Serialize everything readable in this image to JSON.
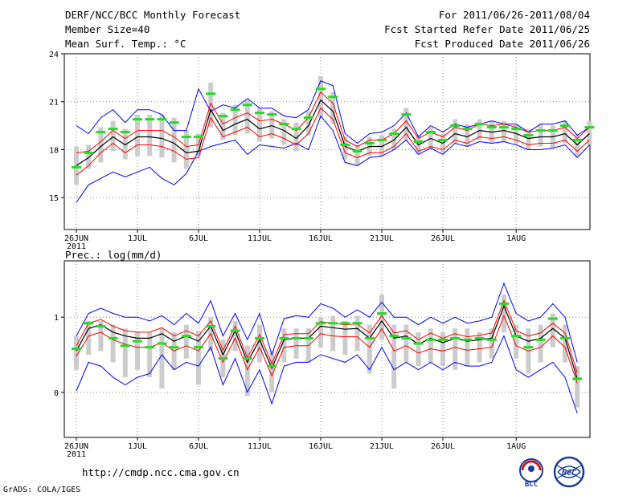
{
  "header": {
    "title": "DERF/NCC/BCC Monthly Forecast",
    "member_size": "Member Size=40",
    "variable": "Mean Surf. Temp.: °C",
    "period": "For 2011/06/26-2011/08/04",
    "started": "Fcst Started Refer Date 2011/06/25",
    "produced": "Fcst Produced Date 2011/06/26"
  },
  "footer": {
    "url": "http://cmdp.ncc.cma.gov.cn",
    "grads": "GrADS: COLA/IGES",
    "bcc_logo_text": "BCC",
    "ncc_logo_text": "NCC"
  },
  "colors": {
    "bar": "#cccccc",
    "ensemble_mean": "#000000",
    "inner_bounds": "#ff0000",
    "outer_bounds": "#0000ff",
    "marker": "#22dd22",
    "grid": "#888888"
  },
  "chart_data": [
    {
      "type": "line",
      "name": "temperature",
      "ylabel": "Mean Surf. Temp.: °C",
      "ylim": [
        13.0,
        24.0
      ],
      "yticks": [
        15,
        18,
        21,
        24
      ],
      "xtick_labels": [
        "26JUN",
        "1JUL",
        "6JUL",
        "11JUL",
        "16JUL",
        "21JUL",
        "26JUL",
        "1AUG"
      ],
      "xtick_days": [
        0,
        5,
        10,
        15,
        20,
        25,
        30,
        36
      ],
      "year_label": "2011",
      "days": 40,
      "series": [
        {
          "name": "mean",
          "values": [
            17.0,
            17.5,
            18.2,
            18.8,
            18.3,
            18.8,
            18.8,
            18.7,
            18.4,
            17.8,
            17.9,
            20.5,
            19.2,
            19.6,
            19.9,
            19.3,
            19.5,
            19.2,
            18.7,
            19.5,
            21.1,
            20.4,
            18.2,
            17.9,
            18.2,
            18.2,
            18.6,
            19.4,
            18.3,
            18.7,
            18.4,
            19.0,
            18.8,
            19.2,
            19.1,
            19.2,
            19.0,
            18.7,
            18.8,
            18.8,
            19.0,
            18.3,
            19.0
          ]
        },
        {
          "name": "upper_red",
          "values": [
            17.8,
            17.9,
            18.5,
            19.2,
            18.7,
            19.2,
            19.2,
            19.2,
            18.8,
            18.2,
            18.3,
            20.9,
            19.6,
            20.0,
            20.3,
            19.8,
            19.9,
            19.6,
            19.2,
            20.0,
            21.6,
            20.9,
            18.6,
            18.2,
            18.6,
            18.6,
            19.0,
            19.8,
            18.7,
            19.1,
            18.8,
            19.4,
            19.2,
            19.6,
            19.5,
            19.6,
            19.4,
            19.1,
            19.2,
            19.2,
            19.4,
            18.7,
            19.4
          ]
        },
        {
          "name": "lower_red",
          "values": [
            16.4,
            17.0,
            17.8,
            18.4,
            17.8,
            18.3,
            18.3,
            18.2,
            17.9,
            17.4,
            17.5,
            20.0,
            18.8,
            19.1,
            19.4,
            18.8,
            19.0,
            18.7,
            18.3,
            19.0,
            20.6,
            19.9,
            17.8,
            17.5,
            17.8,
            17.8,
            18.2,
            19.0,
            17.9,
            18.2,
            18.0,
            18.6,
            18.4,
            18.8,
            18.7,
            18.8,
            18.6,
            18.3,
            18.4,
            18.4,
            18.6,
            17.9,
            18.6
          ]
        },
        {
          "name": "upper_blue",
          "values": [
            19.5,
            19.0,
            20.0,
            20.5,
            19.7,
            20.5,
            20.5,
            20.2,
            19.2,
            19.2,
            21.8,
            20.4,
            20.8,
            20.6,
            21.2,
            20.6,
            20.6,
            20.1,
            20.0,
            20.5,
            22.3,
            22.0,
            19.0,
            18.4,
            19.0,
            19.1,
            19.5,
            20.3,
            18.8,
            19.5,
            19.1,
            19.6,
            19.4,
            19.6,
            19.8,
            19.6,
            19.6,
            19.1,
            19.6,
            19.6,
            19.8,
            18.9,
            19.4
          ]
        },
        {
          "name": "lower_blue",
          "values": [
            14.7,
            15.8,
            16.2,
            16.6,
            16.3,
            16.6,
            16.9,
            16.2,
            15.8,
            16.5,
            17.9,
            18.2,
            18.4,
            18.6,
            17.7,
            18.3,
            18.2,
            18.1,
            18.4,
            18.0,
            20.1,
            19.2,
            17.2,
            17.0,
            17.5,
            17.6,
            18.0,
            18.6,
            17.7,
            18.1,
            17.7,
            18.4,
            18.2,
            18.5,
            18.4,
            18.5,
            18.3,
            18.0,
            18.0,
            18.1,
            18.3,
            17.5,
            18.3
          ]
        },
        {
          "name": "green_marker",
          "values": [
            16.9,
            17.8,
            19.1,
            19.3,
            19.1,
            19.9,
            19.9,
            19.9,
            19.7,
            18.8,
            18.8,
            21.5,
            20.1,
            20.5,
            20.8,
            20.3,
            20.2,
            19.6,
            19.3,
            20.0,
            21.8,
            21.3,
            18.3,
            17.9,
            18.4,
            18.6,
            19.0,
            20.2,
            18.5,
            19.1,
            18.6,
            19.5,
            19.3,
            19.6,
            19.4,
            19.4,
            19.3,
            18.9,
            19.2,
            19.2,
            19.5,
            18.6,
            19.4
          ]
        },
        {
          "name": "bar_top",
          "values": [
            18.2,
            18.3,
            19.4,
            19.8,
            19.3,
            20.2,
            20.2,
            20.2,
            20.0,
            19.2,
            19.0,
            22.2,
            20.3,
            20.8,
            21.1,
            20.6,
            20.4,
            19.9,
            19.7,
            20.4,
            22.6,
            21.6,
            18.8,
            18.3,
            18.8,
            18.9,
            19.3,
            20.6,
            18.9,
            19.4,
            19.0,
            19.9,
            19.6,
            19.9,
            19.8,
            19.8,
            19.6,
            19.3,
            19.6,
            19.5,
            19.8,
            19.0,
            19.8
          ]
        },
        {
          "name": "bar_bottom",
          "values": [
            15.8,
            16.8,
            17.2,
            17.9,
            17.4,
            17.6,
            17.6,
            17.5,
            17.2,
            16.8,
            17.6,
            19.4,
            18.6,
            18.9,
            19.0,
            18.5,
            18.7,
            18.3,
            17.9,
            18.9,
            20.0,
            19.6,
            17.4,
            17.0,
            17.6,
            17.6,
            18.0,
            18.6,
            17.7,
            18.1,
            17.8,
            18.4,
            18.2,
            18.6,
            18.4,
            18.5,
            18.4,
            18.0,
            18.2,
            18.1,
            18.4,
            17.6,
            18.3
          ]
        }
      ]
    },
    {
      "type": "line",
      "name": "precipitation",
      "ylabel": "Prec.: log(mm/d)",
      "ylim": [
        -0.6,
        1.75
      ],
      "yticks": [
        0,
        1
      ],
      "xtick_labels": [
        "26JUN",
        "1JUL",
        "6JUL",
        "11JUL",
        "16JUL",
        "21JUL",
        "26JUL",
        "1AUG"
      ],
      "xtick_days": [
        0,
        5,
        10,
        15,
        20,
        25,
        30,
        36
      ],
      "year_label": "2011",
      "days": 40,
      "series": [
        {
          "name": "mean",
          "values": [
            0.55,
            0.85,
            0.9,
            0.8,
            0.75,
            0.72,
            0.72,
            0.78,
            0.68,
            0.75,
            0.68,
            0.88,
            0.5,
            0.82,
            0.4,
            0.7,
            0.32,
            0.7,
            0.72,
            0.72,
            0.88,
            0.86,
            0.84,
            0.85,
            0.72,
            0.95,
            0.72,
            0.75,
            0.64,
            0.72,
            0.66,
            0.72,
            0.68,
            0.7,
            0.72,
            1.15,
            0.75,
            0.68,
            0.72,
            0.85,
            0.72,
            0.18
          ]
        },
        {
          "name": "upper_red",
          "values": [
            0.62,
            0.92,
            0.97,
            0.88,
            0.82,
            0.8,
            0.8,
            0.86,
            0.75,
            0.82,
            0.75,
            0.95,
            0.56,
            0.88,
            0.46,
            0.77,
            0.38,
            0.77,
            0.78,
            0.78,
            0.94,
            0.92,
            0.9,
            0.91,
            0.79,
            1.02,
            0.79,
            0.82,
            0.7,
            0.79,
            0.72,
            0.78,
            0.74,
            0.76,
            0.79,
            1.22,
            0.82,
            0.75,
            0.79,
            0.92,
            0.79,
            0.26
          ]
        },
        {
          "name": "lower_red",
          "values": [
            0.48,
            0.75,
            0.8,
            0.7,
            0.64,
            0.6,
            0.6,
            0.66,
            0.55,
            0.62,
            0.55,
            0.78,
            0.4,
            0.72,
            0.3,
            0.6,
            0.22,
            0.6,
            0.62,
            0.62,
            0.78,
            0.75,
            0.74,
            0.74,
            0.6,
            0.85,
            0.55,
            0.62,
            0.52,
            0.58,
            0.55,
            0.6,
            0.56,
            0.58,
            0.6,
            1.02,
            0.62,
            0.55,
            0.6,
            0.75,
            0.6,
            0.12
          ]
        },
        {
          "name": "upper_blue",
          "values": [
            0.75,
            1.05,
            1.12,
            1.05,
            1.0,
            1.0,
            0.95,
            1.02,
            0.9,
            1.05,
            0.92,
            1.22,
            0.75,
            1.05,
            0.7,
            1.05,
            0.5,
            0.98,
            1.02,
            1.0,
            1.18,
            1.12,
            1.0,
            1.1,
            1.0,
            1.2,
            1.0,
            1.0,
            0.9,
            1.0,
            0.92,
            1.0,
            0.92,
            0.95,
            1.0,
            1.45,
            1.05,
            0.95,
            1.0,
            1.18,
            1.0,
            0.4
          ]
        },
        {
          "name": "lower_blue",
          "values": [
            0.02,
            0.4,
            0.35,
            0.2,
            0.1,
            0.2,
            0.25,
            0.5,
            0.3,
            0.4,
            0.35,
            0.6,
            0.1,
            0.45,
            0.0,
            0.3,
            -0.15,
            0.35,
            0.4,
            0.4,
            0.5,
            0.45,
            0.4,
            0.5,
            0.3,
            0.6,
            0.3,
            0.4,
            0.3,
            0.4,
            0.3,
            0.4,
            0.35,
            0.35,
            0.4,
            0.75,
            0.3,
            0.2,
            0.3,
            0.4,
            0.2,
            -0.28
          ]
        },
        {
          "name": "green_marker",
          "values": [
            0.58,
            0.92,
            0.88,
            0.72,
            0.62,
            0.68,
            0.6,
            0.65,
            0.6,
            0.75,
            0.6,
            0.88,
            0.45,
            0.82,
            0.45,
            0.72,
            0.35,
            0.72,
            0.72,
            0.72,
            0.92,
            0.92,
            0.92,
            0.92,
            0.72,
            1.05,
            0.75,
            0.72,
            0.65,
            0.7,
            0.7,
            0.72,
            0.7,
            0.72,
            0.7,
            1.18,
            0.75,
            0.6,
            0.7,
            0.98,
            0.72,
            0.18
          ]
        },
        {
          "name": "bar_top",
          "values": [
            0.75,
            0.95,
            0.95,
            0.9,
            0.85,
            0.8,
            0.8,
            0.85,
            0.8,
            0.9,
            0.82,
            1.0,
            0.7,
            0.95,
            0.62,
            0.9,
            0.55,
            0.85,
            0.85,
            0.85,
            1.0,
            1.02,
            0.95,
            1.02,
            0.9,
            1.3,
            0.9,
            0.9,
            0.8,
            0.85,
            0.8,
            0.85,
            0.85,
            0.8,
            0.85,
            1.3,
            0.9,
            0.85,
            0.9,
            1.05,
            0.9,
            0.35
          ]
        },
        {
          "name": "bar_bottom",
          "values": [
            0.3,
            0.5,
            0.55,
            0.4,
            0.2,
            0.3,
            0.2,
            0.05,
            0.3,
            0.45,
            0.1,
            0.55,
            0.2,
            0.55,
            -0.05,
            0.4,
            0.0,
            0.4,
            0.45,
            0.4,
            0.6,
            0.55,
            0.5,
            0.55,
            0.25,
            0.7,
            0.05,
            0.4,
            0.35,
            0.4,
            0.35,
            0.3,
            0.35,
            0.4,
            0.45,
            0.8,
            0.45,
            0.25,
            0.4,
            0.6,
            0.4,
            -0.2
          ]
        }
      ]
    }
  ]
}
